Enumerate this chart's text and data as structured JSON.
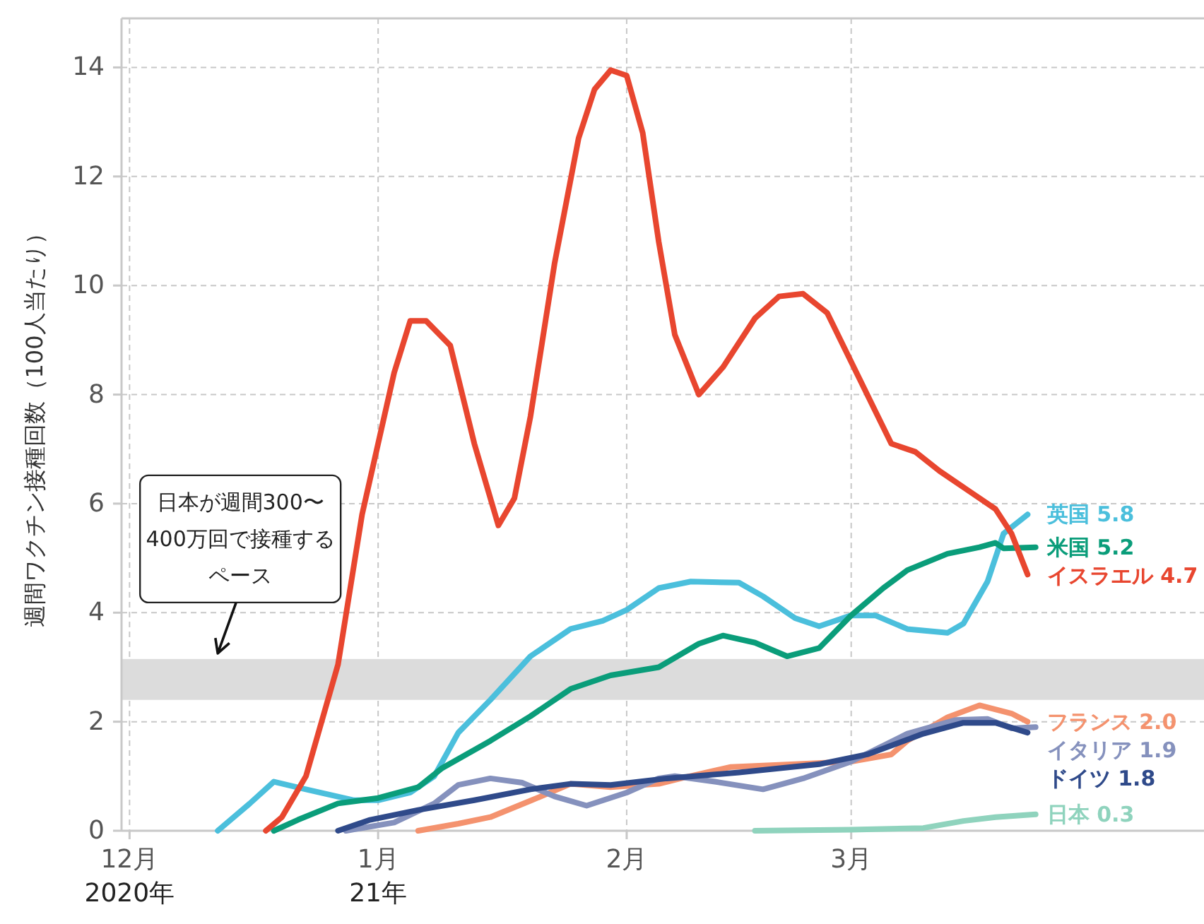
{
  "chart_data": {
    "type": "line",
    "ylabel": "週間ワクチン接種回数（100人当たり）",
    "xlim": [
      "2020-11-30",
      "2021-04-14"
    ],
    "ylim": [
      0,
      14.9
    ],
    "xticks": [
      {
        "value": "2020-12-01",
        "label": "12月\n2020年"
      },
      {
        "value": "2021-01-01",
        "label": "1月\n21年"
      },
      {
        "value": "2021-02-01",
        "label": "2月"
      },
      {
        "value": "2021-03-01",
        "label": "3月"
      }
    ],
    "yticks": [
      0,
      2,
      4,
      6,
      8,
      10,
      12,
      14
    ],
    "grid": true,
    "bands": [
      {
        "axis": "y",
        "from": 2.4,
        "to": 3.15,
        "color": "#dcdcdc"
      }
    ],
    "annotations": [
      {
        "text": "日本が週間300〜400万回で接種するペース",
        "x": "2020-12-12",
        "y": 3.15
      }
    ],
    "series": [
      {
        "name": "英国",
        "color": "#4bbfdc",
        "x": [
          "2020-12-12",
          "2020-12-16",
          "2020-12-19",
          "2020-12-23",
          "2020-12-29",
          "2021-01-01",
          "2021-01-05",
          "2021-01-08",
          "2021-01-11",
          "2021-01-15",
          "2021-01-20",
          "2021-01-25",
          "2021-01-29",
          "2021-02-01",
          "2021-02-05",
          "2021-02-09",
          "2021-02-15",
          "2021-02-18",
          "2021-02-22",
          "2021-02-25",
          "2021-03-01",
          "2021-03-04",
          "2021-03-08",
          "2021-03-13",
          "2021-03-15",
          "2021-03-18",
          "2021-03-20",
          "2021-03-23"
        ],
        "values": [
          0,
          0.5,
          0.9,
          0.76,
          0.56,
          0.56,
          0.7,
          1.0,
          1.8,
          2.4,
          3.2,
          3.7,
          3.85,
          4.05,
          4.45,
          4.57,
          4.55,
          4.3,
          3.9,
          3.75,
          3.95,
          3.95,
          3.7,
          3.63,
          3.8,
          4.57,
          5.45,
          5.8
        ],
        "value_labels": [
          null,
          null,
          null,
          null,
          null,
          null,
          null,
          null,
          null,
          null,
          null,
          null,
          null,
          null,
          null,
          null,
          null,
          null,
          null,
          null,
          null,
          null,
          null,
          null,
          null,
          null,
          null,
          "5.8"
        ]
      },
      {
        "name": "米国",
        "color": "#0a9d7a",
        "x": [
          "2020-12-19",
          "2020-12-22",
          "2020-12-27",
          "2021-01-01",
          "2021-01-06",
          "2021-01-09",
          "2021-01-15",
          "2021-01-20",
          "2021-01-25",
          "2021-01-30",
          "2021-02-05",
          "2021-02-10",
          "2021-02-13",
          "2021-02-17",
          "2021-02-21",
          "2021-02-25",
          "2021-03-01",
          "2021-03-05",
          "2021-03-08",
          "2021-03-13",
          "2021-03-17",
          "2021-03-19",
          "2021-03-20",
          "2021-03-24"
        ],
        "values": [
          0,
          0.2,
          0.5,
          0.6,
          0.8,
          1.15,
          1.65,
          2.1,
          2.6,
          2.85,
          3.0,
          3.43,
          3.58,
          3.45,
          3.2,
          3.35,
          3.95,
          4.45,
          4.78,
          5.08,
          5.2,
          5.28,
          5.18,
          5.2
        ],
        "value_labels": [
          null,
          null,
          null,
          null,
          null,
          null,
          null,
          null,
          null,
          null,
          null,
          null,
          null,
          null,
          null,
          null,
          null,
          null,
          null,
          null,
          null,
          null,
          null,
          "5.2"
        ]
      },
      {
        "name": "イスラエル",
        "color": "#e8462f",
        "x": [
          "2020-12-18",
          "2020-12-20",
          "2020-12-23",
          "2020-12-27",
          "2020-12-30",
          "2021-01-03",
          "2021-01-05",
          "2021-01-07",
          "2021-01-10",
          "2021-01-13",
          "2021-01-16",
          "2021-01-18",
          "2021-01-20",
          "2021-01-23",
          "2021-01-26",
          "2021-01-28",
          "2021-01-30",
          "2021-02-01",
          "2021-02-03",
          "2021-02-05",
          "2021-02-07",
          "2021-02-10",
          "2021-02-13",
          "2021-02-17",
          "2021-02-20",
          "2021-02-23",
          "2021-02-26",
          "2021-03-01",
          "2021-03-04",
          "2021-03-06",
          "2021-03-09",
          "2021-03-12",
          "2021-03-16",
          "2021-03-19",
          "2021-03-21",
          "2021-03-23"
        ],
        "values": [
          0,
          0.25,
          1.0,
          3.05,
          5.8,
          8.4,
          9.35,
          9.35,
          8.9,
          7.1,
          5.6,
          6.1,
          7.6,
          10.4,
          12.7,
          13.6,
          13.95,
          13.85,
          12.8,
          10.8,
          9.1,
          8.0,
          8.5,
          9.4,
          9.8,
          9.85,
          9.5,
          8.6,
          7.7,
          7.1,
          6.95,
          6.6,
          6.2,
          5.9,
          5.45,
          4.7
        ],
        "value_labels": [
          null,
          null,
          null,
          null,
          null,
          null,
          null,
          null,
          null,
          null,
          null,
          null,
          null,
          null,
          null,
          null,
          null,
          null,
          null,
          null,
          null,
          null,
          null,
          null,
          null,
          null,
          null,
          null,
          null,
          null,
          null,
          null,
          null,
          null,
          null,
          "4.7"
        ]
      },
      {
        "name": "フランス",
        "color": "#f4926e",
        "x": [
          "2021-01-06",
          "2021-01-11",
          "2021-01-15",
          "2021-01-20",
          "2021-01-25",
          "2021-01-30",
          "2021-02-05",
          "2021-02-08",
          "2021-02-14",
          "2021-02-22",
          "2021-03-01",
          "2021-03-06",
          "2021-03-08",
          "2021-03-13",
          "2021-03-17",
          "2021-03-21",
          "2021-03-23"
        ],
        "values": [
          0,
          0.13,
          0.25,
          0.55,
          0.86,
          0.8,
          0.86,
          0.97,
          1.17,
          1.22,
          1.27,
          1.4,
          1.65,
          2.08,
          2.3,
          2.15,
          2.0
        ],
        "value_labels": [
          null,
          null,
          null,
          null,
          null,
          null,
          null,
          null,
          null,
          null,
          null,
          null,
          null,
          null,
          null,
          null,
          "2.0"
        ]
      },
      {
        "name": "イタリア",
        "color": "#8591bd",
        "x": [
          "2020-12-28",
          "2021-01-03",
          "2021-01-08",
          "2021-01-11",
          "2021-01-15",
          "2021-01-19",
          "2021-01-23",
          "2021-01-27",
          "2021-02-01",
          "2021-02-05",
          "2021-02-07",
          "2021-02-12",
          "2021-02-18",
          "2021-02-23",
          "2021-03-01",
          "2021-03-08",
          "2021-03-14",
          "2021-03-18",
          "2021-03-21",
          "2021-03-24"
        ],
        "values": [
          0,
          0.15,
          0.5,
          0.84,
          0.96,
          0.88,
          0.63,
          0.46,
          0.7,
          0.96,
          1.0,
          0.9,
          0.76,
          0.96,
          1.27,
          1.78,
          2.03,
          2.05,
          1.88,
          1.9
        ],
        "value_labels": [
          null,
          null,
          null,
          null,
          null,
          null,
          null,
          null,
          null,
          null,
          null,
          null,
          null,
          null,
          null,
          null,
          null,
          null,
          null,
          "1.9"
        ]
      },
      {
        "name": "ドイツ",
        "color": "#2f4a8a",
        "x": [
          "2020-12-27",
          "2020-12-31",
          "2021-01-06",
          "2021-01-13",
          "2021-01-20",
          "2021-01-25",
          "2021-01-30",
          "2021-02-06",
          "2021-02-15",
          "2021-02-25",
          "2021-03-03",
          "2021-03-10",
          "2021-03-15",
          "2021-03-19",
          "2021-03-23"
        ],
        "values": [
          0,
          0.2,
          0.38,
          0.56,
          0.76,
          0.86,
          0.84,
          0.96,
          1.07,
          1.22,
          1.4,
          1.78,
          1.98,
          1.98,
          1.8
        ],
        "value_labels": [
          null,
          null,
          null,
          null,
          null,
          null,
          null,
          null,
          null,
          null,
          null,
          null,
          null,
          null,
          "1.8"
        ]
      },
      {
        "name": "日本",
        "color": "#8fd3bd",
        "x": [
          "2021-02-17",
          "2021-03-01",
          "2021-03-10",
          "2021-03-15",
          "2021-03-19",
          "2021-03-24"
        ],
        "values": [
          0,
          0.02,
          0.05,
          0.18,
          0.25,
          0.3
        ],
        "value_labels": [
          null,
          null,
          null,
          null,
          null,
          "0.3"
        ]
      }
    ]
  }
}
